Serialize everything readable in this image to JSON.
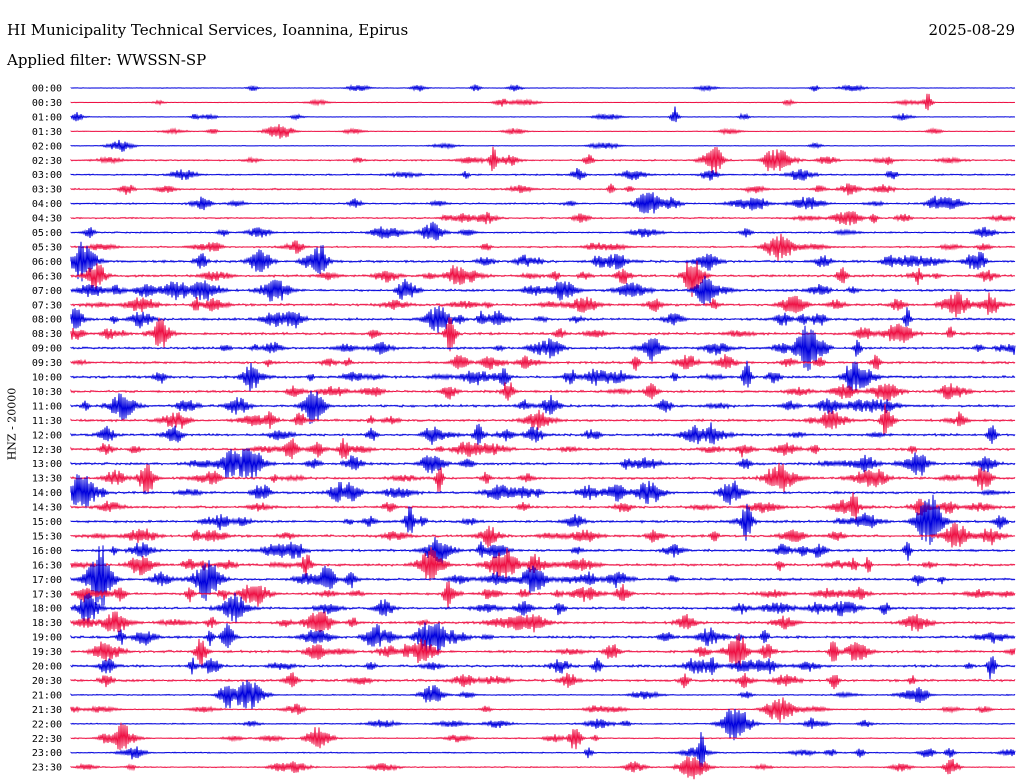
{
  "header": {
    "title": "HI Municipality Technical Services, Ioannina, Epirus",
    "date": "2025-08-29",
    "filter": "Applied filter: WWSSN-SP"
  },
  "chart_data": {
    "type": "line",
    "ylabel": "HNZ - 20000",
    "trace_colors": [
      "#0000dd",
      "#ee1144"
    ],
    "line_times": [
      "00:00",
      "00:30",
      "01:00",
      "01:30",
      "02:00",
      "02:30",
      "03:00",
      "03:30",
      "04:00",
      "04:30",
      "05:00",
      "05:30",
      "06:00",
      "06:30",
      "07:00",
      "07:30",
      "08:00",
      "08:30",
      "09:00",
      "09:30",
      "10:00",
      "10:30",
      "11:00",
      "11:30",
      "12:00",
      "12:30",
      "13:00",
      "13:30",
      "14:00",
      "14:30",
      "15:00",
      "15:30",
      "16:00",
      "16:30",
      "17:00",
      "17:30",
      "18:00",
      "18:30",
      "19:00",
      "19:30",
      "20:00",
      "20:30",
      "21:00",
      "21:30",
      "22:00",
      "22:30",
      "23:00",
      "23:30"
    ],
    "grid": false,
    "legend": "none"
  }
}
